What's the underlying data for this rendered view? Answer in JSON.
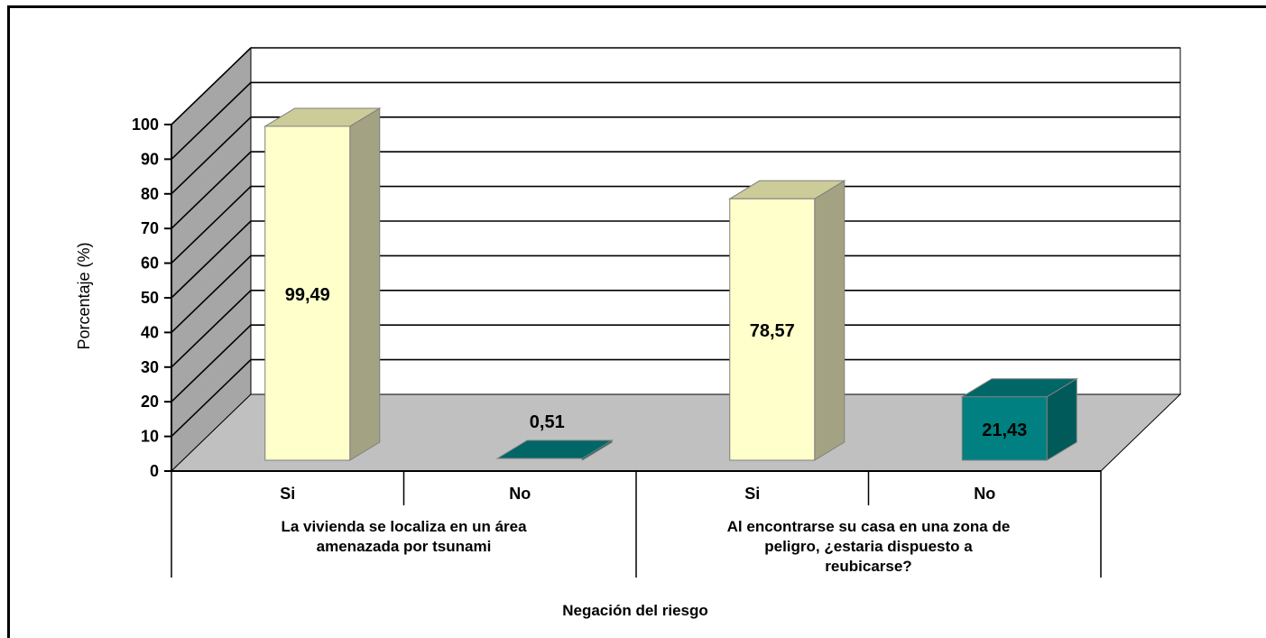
{
  "chart_data": {
    "type": "bar",
    "title": "",
    "ylabel": "Porcentaje (%)",
    "xlabel": "Negación del riesgo",
    "ylim": [
      0,
      100
    ],
    "yticks": [
      0,
      10,
      20,
      30,
      40,
      50,
      60,
      70,
      80,
      90,
      100
    ],
    "groups": [
      {
        "label": "La vivienda se localiza en un área amenazada por tsunami",
        "label_lines": [
          "La vivienda se localiza en un área",
          "amenazada por tsunami"
        ],
        "categories": [
          "Si",
          "No"
        ],
        "values": [
          99.49,
          0.51
        ],
        "value_labels": [
          "99,49",
          "0,51"
        ]
      },
      {
        "label": "Al encontrarse su casa en una zona de peligro, ¿estaria dispuesto a reubicarse?",
        "label_lines": [
          "Al encontrarse su casa en una zona de",
          "peligro, ¿estaria dispuesto a",
          "reubicarse?"
        ],
        "categories": [
          "Si",
          "No"
        ],
        "values": [
          78.57,
          21.43
        ],
        "value_labels": [
          "78,57",
          "21,43"
        ]
      }
    ],
    "grid": true,
    "style_3d": true,
    "colors": {
      "si_front": "#ffffcc",
      "si_side": "#a3a383",
      "si_top": "#cccc99",
      "no_front": "#008080",
      "no_side": "#005a5a",
      "no_top": "#006666",
      "wall": "#ffffff",
      "side_wall": "#a6a6a6",
      "floor": "#c0c0c0",
      "grid": "#000000"
    }
  }
}
